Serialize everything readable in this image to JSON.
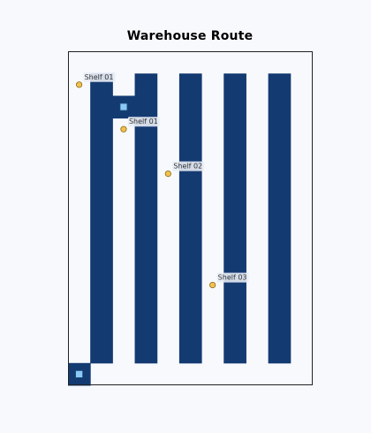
{
  "title": "Warehouse Route",
  "colors": {
    "background": "#f7f9fd",
    "floor": "#f7f9fd",
    "shelf": "#143a72",
    "frame": "#222222",
    "marker_fill": "#f2c14e",
    "marker_stroke": "#8a6a10",
    "waypoint_fill": "#8ec9f5",
    "waypoint_stroke": "#1a4f80",
    "label_bg": "#e8edf5"
  },
  "grid": {
    "cols": 11,
    "rows": 15
  },
  "shelf_blocks": [
    {
      "name": "shelf-column-1",
      "col": 1,
      "row_start": 1,
      "row_end": 13
    },
    {
      "name": "shelf-column-2",
      "col": 3,
      "row_start": 1,
      "row_end": 13
    },
    {
      "name": "shelf-column-3",
      "col": 5,
      "row_start": 1,
      "row_end": 13
    },
    {
      "name": "shelf-column-4",
      "col": 7,
      "row_start": 1,
      "row_end": 13
    },
    {
      "name": "shelf-column-5",
      "col": 9,
      "row_start": 1,
      "row_end": 13
    },
    {
      "name": "shelf-connector",
      "col": 2,
      "row_start": 2,
      "row_end": 2
    },
    {
      "name": "start-cell",
      "col": 0,
      "row_start": 14,
      "row_end": 14
    }
  ],
  "waypoints": [
    {
      "name": "start-waypoint",
      "col": 0,
      "row": 14
    },
    {
      "name": "connector-waypoint",
      "col": 2,
      "row": 2
    }
  ],
  "markers": [
    {
      "label": "Shelf 01",
      "col": 0,
      "row": 1
    },
    {
      "label": "Shelf 01",
      "col": 2,
      "row": 3
    },
    {
      "label": "Shelf 02",
      "col": 4,
      "row": 5
    },
    {
      "label": "Shelf 03",
      "col": 6,
      "row": 10
    }
  ]
}
